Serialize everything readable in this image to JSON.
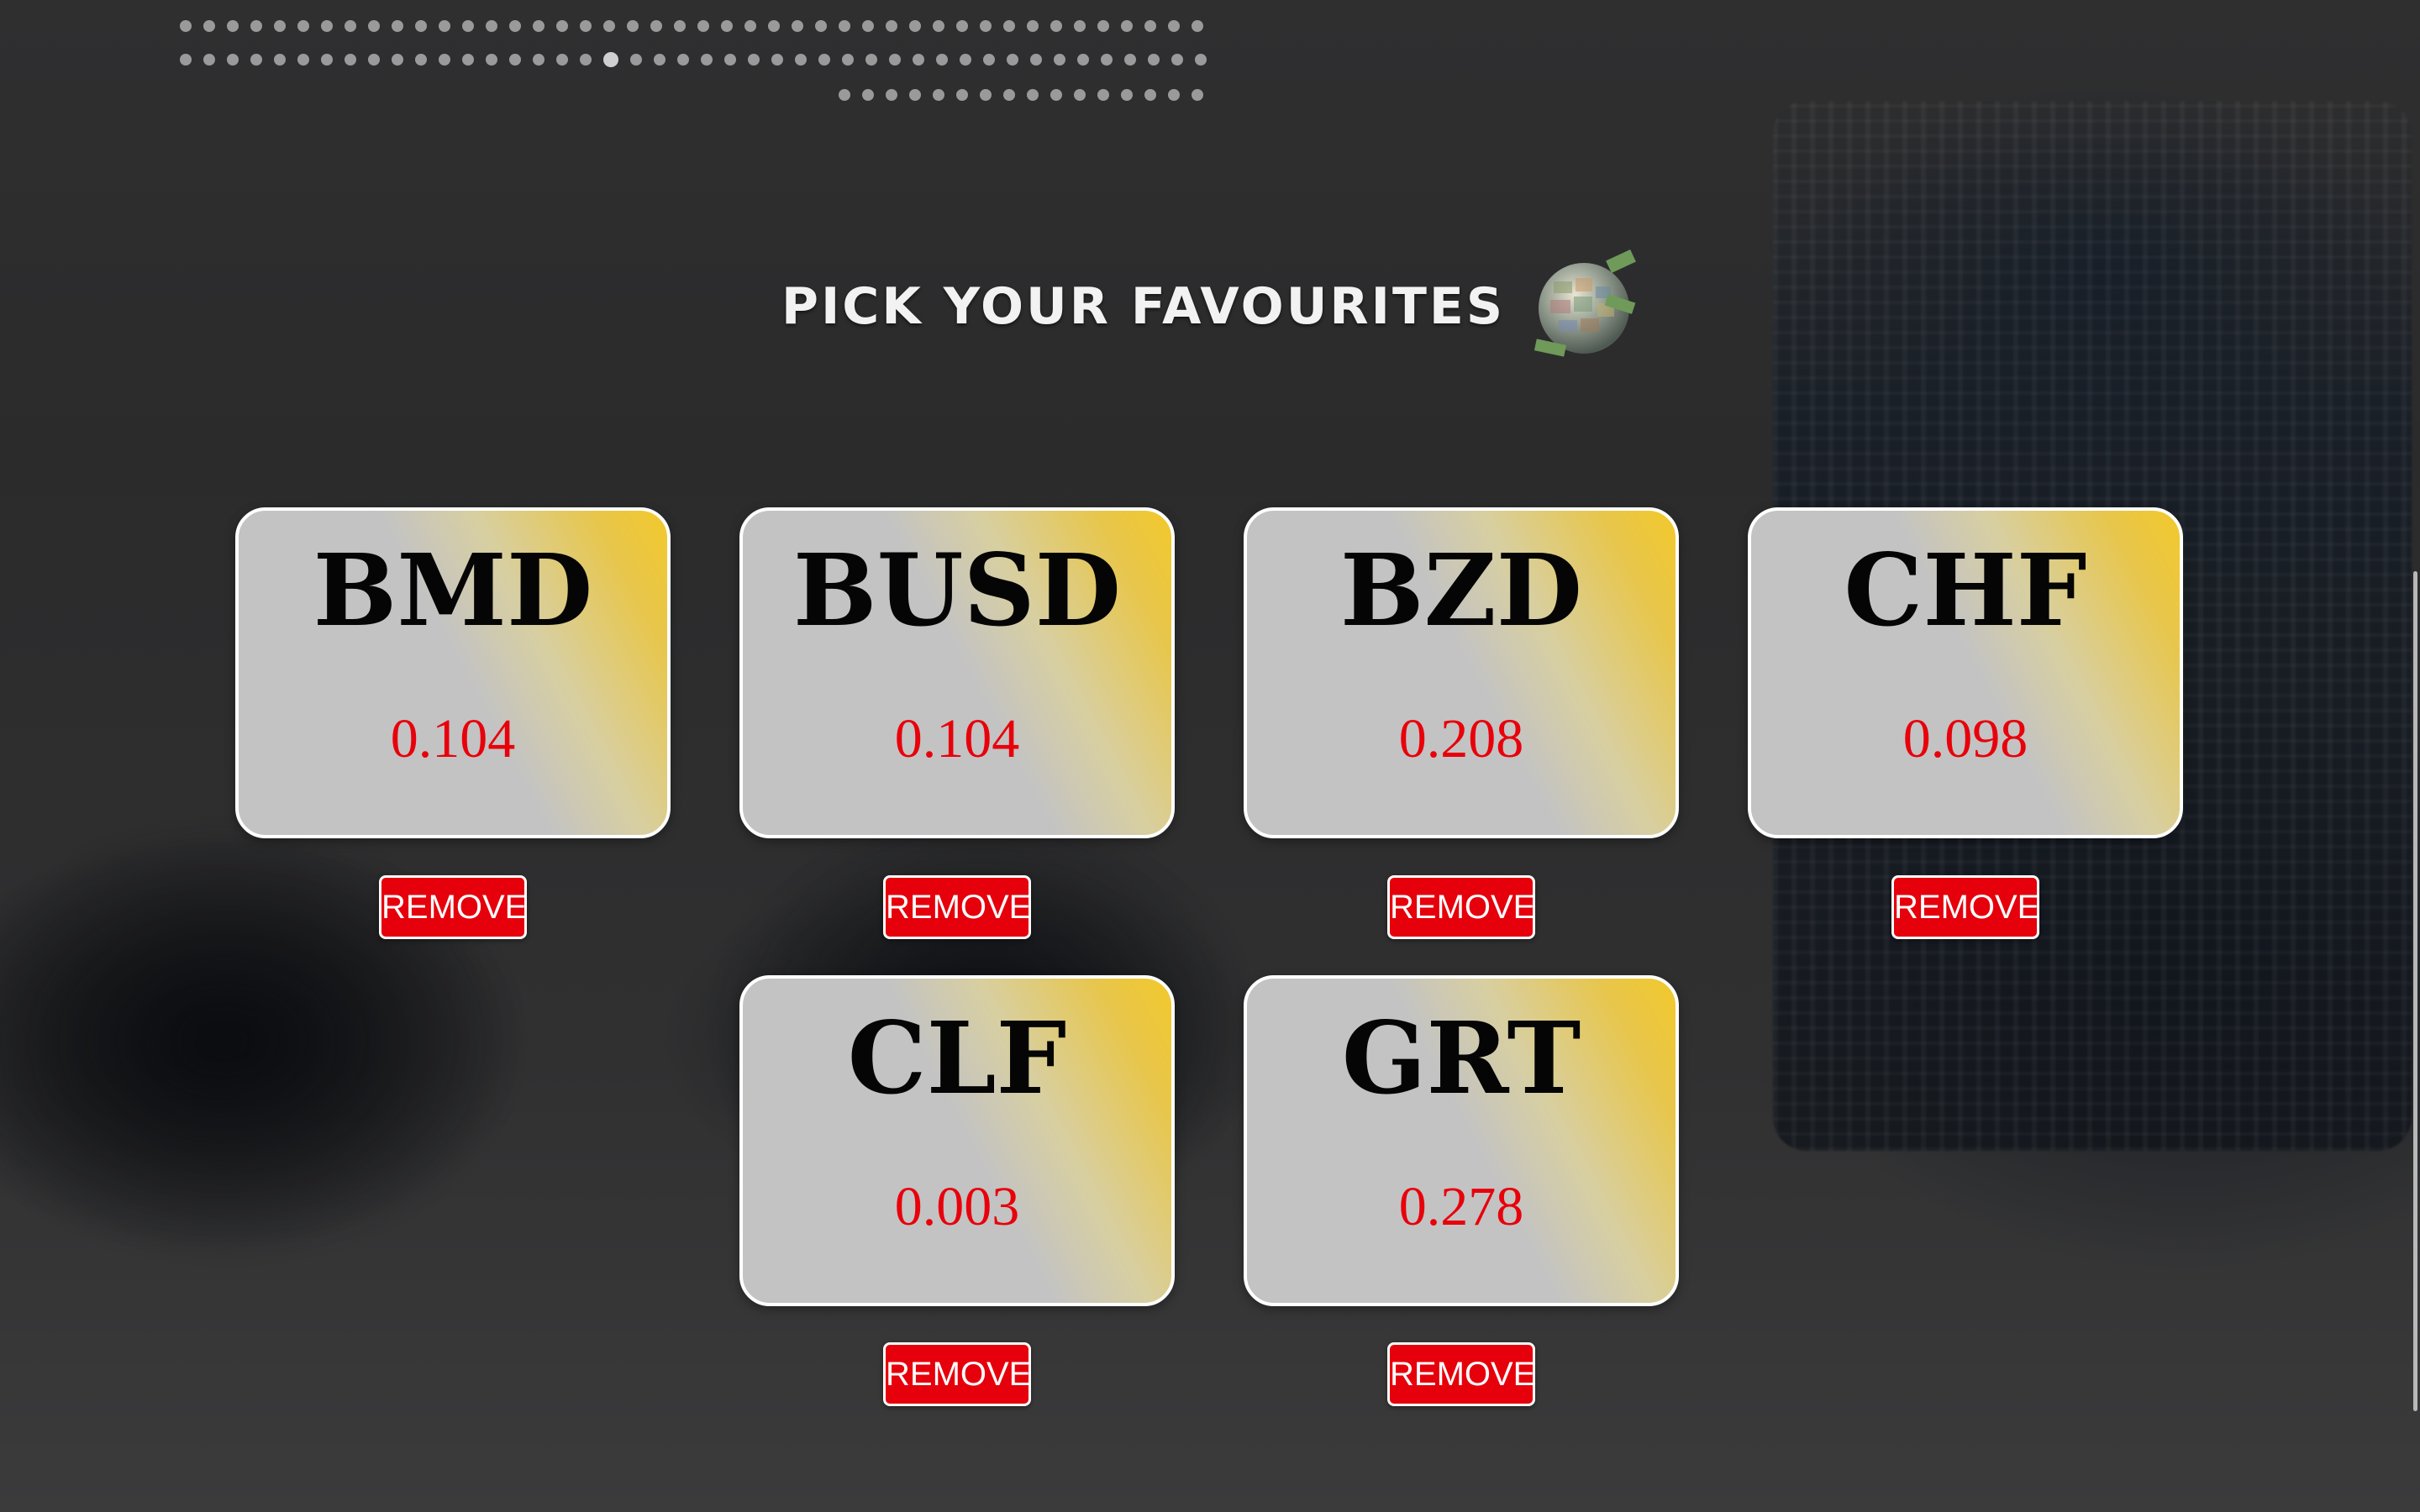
{
  "header": {
    "title": "PICK YOUR FAVOURITES",
    "globe_icon": "money-globe-icon"
  },
  "carousel": {
    "rows": [
      {
        "count": 44,
        "active_index": -1
      },
      {
        "count": 44,
        "active_index": 18
      },
      {
        "count": 16,
        "active_index": -1
      }
    ]
  },
  "favourites": [
    {
      "code": "BMD",
      "value": "0.104",
      "remove_label": "REMOVE"
    },
    {
      "code": "BUSD",
      "value": "0.104",
      "remove_label": "REMOVE"
    },
    {
      "code": "BZD",
      "value": "0.208",
      "remove_label": "REMOVE"
    },
    {
      "code": "CHF",
      "value": "0.098",
      "remove_label": "REMOVE"
    },
    {
      "code": "CLF",
      "value": "0.003",
      "remove_label": "REMOVE"
    },
    {
      "code": "GRT",
      "value": "0.278",
      "remove_label": "REMOVE"
    }
  ],
  "colors": {
    "card_gray": "#c3c3c3",
    "card_gold": "#f2c92c",
    "value_red": "#e8000b",
    "remove_red": "#e5000b"
  }
}
